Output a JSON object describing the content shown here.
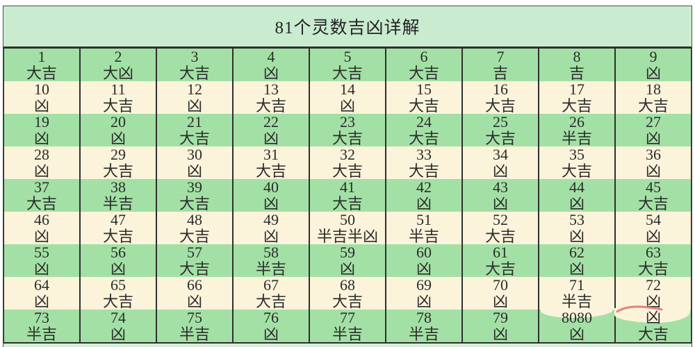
{
  "title": "81个灵数吉凶详解",
  "colors": {
    "title_band": "#c9ecd1",
    "row_green": "#a3e0a5",
    "row_cream": "#fbf3da",
    "border": "#2f2f2f",
    "text": "#2b2b2b",
    "artifact_red": "#e2827d"
  },
  "table": {
    "rows": [
      {
        "tone": "green",
        "cells": [
          {
            "num": "1",
            "luck": "大吉"
          },
          {
            "num": "2",
            "luck": "大凶"
          },
          {
            "num": "3",
            "luck": "大吉"
          },
          {
            "num": "4",
            "luck": "凶"
          },
          {
            "num": "5",
            "luck": "大吉"
          },
          {
            "num": "6",
            "luck": "大吉"
          },
          {
            "num": "7",
            "luck": "吉"
          },
          {
            "num": "8",
            "luck": "吉"
          },
          {
            "num": "9",
            "luck": "凶"
          }
        ]
      },
      {
        "tone": "cream",
        "cells": [
          {
            "num": "10",
            "luck": "凶"
          },
          {
            "num": "11",
            "luck": "大吉"
          },
          {
            "num": "12",
            "luck": "凶"
          },
          {
            "num": "13",
            "luck": "大吉"
          },
          {
            "num": "14",
            "luck": "凶"
          },
          {
            "num": "15",
            "luck": "大吉"
          },
          {
            "num": "16",
            "luck": "大吉"
          },
          {
            "num": "17",
            "luck": "大吉"
          },
          {
            "num": "18",
            "luck": "大吉"
          }
        ]
      },
      {
        "tone": "green",
        "cells": [
          {
            "num": "19",
            "luck": "凶"
          },
          {
            "num": "20",
            "luck": "凶"
          },
          {
            "num": "21",
            "luck": "大吉"
          },
          {
            "num": "22",
            "luck": "凶"
          },
          {
            "num": "23",
            "luck": "大吉"
          },
          {
            "num": "24",
            "luck": "大吉"
          },
          {
            "num": "25",
            "luck": "大吉"
          },
          {
            "num": "26",
            "luck": "半吉"
          },
          {
            "num": "27",
            "luck": "凶"
          }
        ]
      },
      {
        "tone": "cream",
        "cells": [
          {
            "num": "28",
            "luck": "凶"
          },
          {
            "num": "29",
            "luck": "大吉"
          },
          {
            "num": "30",
            "luck": "凶"
          },
          {
            "num": "31",
            "luck": "大吉"
          },
          {
            "num": "32",
            "luck": "大吉"
          },
          {
            "num": "33",
            "luck": "大吉"
          },
          {
            "num": "34",
            "luck": "凶"
          },
          {
            "num": "35",
            "luck": "大吉"
          },
          {
            "num": "36",
            "luck": "凶"
          }
        ]
      },
      {
        "tone": "green",
        "cells": [
          {
            "num": "37",
            "luck": "大吉"
          },
          {
            "num": "38",
            "luck": "半吉"
          },
          {
            "num": "39",
            "luck": "大吉"
          },
          {
            "num": "40",
            "luck": "凶"
          },
          {
            "num": "41",
            "luck": "大吉"
          },
          {
            "num": "42",
            "luck": "凶"
          },
          {
            "num": "43",
            "luck": "凶"
          },
          {
            "num": "44",
            "luck": "凶"
          },
          {
            "num": "45",
            "luck": "大吉"
          }
        ]
      },
      {
        "tone": "cream",
        "cells": [
          {
            "num": "46",
            "luck": "凶"
          },
          {
            "num": "47",
            "luck": "大吉"
          },
          {
            "num": "48",
            "luck": "大吉"
          },
          {
            "num": "49",
            "luck": "凶"
          },
          {
            "num": "50",
            "luck": "半吉半凶"
          },
          {
            "num": "51",
            "luck": "半吉"
          },
          {
            "num": "52",
            "luck": "大吉"
          },
          {
            "num": "53",
            "luck": "凶"
          },
          {
            "num": "54",
            "luck": "凶"
          }
        ]
      },
      {
        "tone": "green",
        "cells": [
          {
            "num": "55",
            "luck": "凶"
          },
          {
            "num": "56",
            "luck": "凶"
          },
          {
            "num": "57",
            "luck": "大吉"
          },
          {
            "num": "58",
            "luck": "半吉"
          },
          {
            "num": "59",
            "luck": "凶"
          },
          {
            "num": "60",
            "luck": "凶"
          },
          {
            "num": "61",
            "luck": "大吉"
          },
          {
            "num": "62",
            "luck": "凶"
          },
          {
            "num": "63",
            "luck": "大吉"
          }
        ]
      },
      {
        "tone": "cream",
        "cells": [
          {
            "num": "64",
            "luck": "凶"
          },
          {
            "num": "65",
            "luck": "大吉"
          },
          {
            "num": "66",
            "luck": "凶"
          },
          {
            "num": "67",
            "luck": "大吉"
          },
          {
            "num": "68",
            "luck": "大吉"
          },
          {
            "num": "69",
            "luck": "凶"
          },
          {
            "num": "70",
            "luck": "凶"
          },
          {
            "num": "71",
            "luck": "半吉"
          },
          {
            "num": "72",
            "luck": "凶"
          }
        ]
      },
      {
        "tone": "green",
        "cells": [
          {
            "num": "73",
            "luck": "半吉"
          },
          {
            "num": "74",
            "luck": "凶"
          },
          {
            "num": "75",
            "luck": "半吉"
          },
          {
            "num": "76",
            "luck": "凶"
          },
          {
            "num": "77",
            "luck": "半吉"
          },
          {
            "num": "78",
            "luck": "半吉"
          },
          {
            "num": "79",
            "luck": "凶"
          },
          {
            "num": "8080",
            "luck": "凶"
          },
          {
            "num": "凶",
            "luck": "大吉"
          }
        ]
      }
    ]
  }
}
